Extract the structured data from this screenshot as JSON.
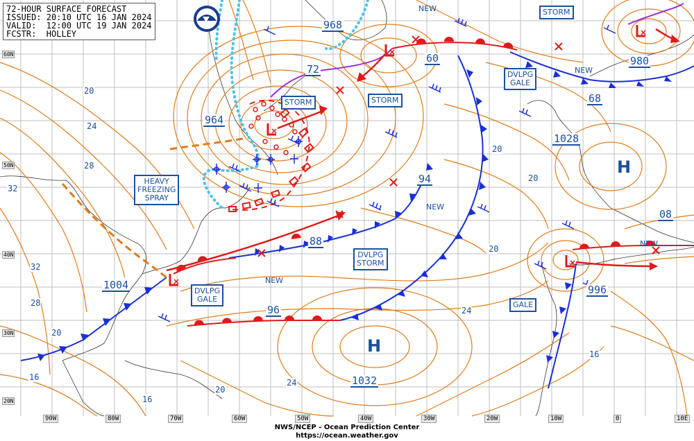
{
  "header": {
    "title": "72-HOUR SURFACE FORECAST",
    "issued": "ISSUED: 20:10 UTC 16 JAN 2024",
    "valid": "VALID:  12:00 UTC 19 JAN 2024",
    "forecaster": "FCSTR:  HOLLEY"
  },
  "footer": {
    "line1": "NWS/NCEP - Ocean Prediction Center",
    "line2": "https://ocean.weather.gov"
  },
  "latitude_labels": [
    "60N",
    "50N",
    "40N",
    "30N",
    "20N"
  ],
  "longitude_labels": [
    "90W",
    "80W",
    "70W",
    "60W",
    "50W",
    "40W",
    "30W",
    "20W",
    "10W",
    "0",
    "10E"
  ],
  "warnings": {
    "storm_ne": "STORM",
    "storm_newfoundland": "STORM",
    "storm_mid": "STORM",
    "dvlpg_gale_ne": [
      "DVLPG",
      "GALE"
    ],
    "heavy_freezing_spray": [
      "HEAVY",
      "FREEZING",
      "SPRAY"
    ],
    "dvlpg_storm": [
      "DVLPG",
      "STORM"
    ],
    "dvlpg_gale_sw": [
      "DVLPG",
      "GALE"
    ],
    "gale_east": "GALE"
  },
  "pressure_centers": {
    "low_968": "968",
    "low_964": "964",
    "low_960": "60",
    "low_972": "72",
    "low_980": "980",
    "low_1004": "1004",
    "low_988": "88",
    "low_994": "94",
    "low_996_w": "96",
    "low_996_e": "996",
    "high_1028": "1028",
    "high_1032": "1032",
    "high_1008": "08",
    "low_968b": "68"
  },
  "systems_new": [
    "NEW",
    "NEW",
    "NEW",
    "NEW",
    "NEW"
  ],
  "highs": [
    "H",
    "H"
  ],
  "isobar_labels": [
    "20",
    "24",
    "28",
    "32",
    "32",
    "28",
    "20",
    "16",
    "16",
    "20",
    "24",
    "20",
    "24",
    "20",
    "16",
    "20"
  ],
  "colors": {
    "isobar": "#e07b1a",
    "cold_front": "#1a2fd6",
    "warm_front": "#e01a1a",
    "occluded_front": "#9b2fd6",
    "ice_edge": "#4ec3e8",
    "text_blue": "#1a4fa0",
    "grid": "#bfbfbf"
  }
}
